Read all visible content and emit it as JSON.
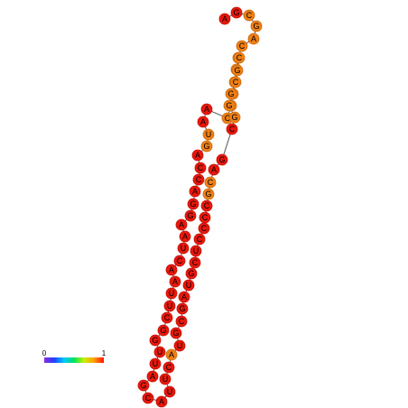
{
  "colors": {
    "high": "#e8180c",
    "mid": "#ee7f16",
    "stroke_high": "#c41008",
    "stroke_mid": "#c96a10",
    "backbone": "#555555"
  },
  "legend": {
    "min_label": "0",
    "max_label": "1",
    "gradient": [
      "#8a2be2",
      "#2040ff",
      "#00c8ff",
      "#00e060",
      "#c8f000",
      "#ffa000",
      "#ff1000"
    ]
  },
  "nucleotides": [
    {
      "base": "A",
      "level": "high"
    },
    {
      "base": "G",
      "level": "high"
    },
    {
      "base": "C",
      "level": "mid"
    },
    {
      "base": "G",
      "level": "mid"
    },
    {
      "base": "A",
      "level": "mid"
    },
    {
      "base": "C",
      "level": "mid"
    },
    {
      "base": "G",
      "level": "mid"
    },
    {
      "base": "C",
      "level": "mid"
    },
    {
      "base": "U",
      "level": "mid"
    },
    {
      "base": "G",
      "level": "mid"
    },
    {
      "base": "C",
      "level": "mid"
    },
    {
      "base": "C",
      "level": "mid"
    },
    {
      "base": "A",
      "level": "high"
    },
    {
      "base": "A",
      "level": "high"
    },
    {
      "base": "U",
      "level": "mid"
    },
    {
      "base": "G",
      "level": "mid"
    },
    {
      "base": "A",
      "level": "high"
    },
    {
      "base": "C",
      "level": "high"
    },
    {
      "base": "C",
      "level": "high"
    },
    {
      "base": "A",
      "level": "high"
    },
    {
      "base": "G",
      "level": "high"
    },
    {
      "base": "G",
      "level": "high"
    },
    {
      "base": "A",
      "level": "high"
    },
    {
      "base": "A",
      "level": "high"
    },
    {
      "base": "U",
      "level": "high"
    },
    {
      "base": "C",
      "level": "high"
    },
    {
      "base": "A",
      "level": "high"
    },
    {
      "base": "A",
      "level": "high"
    },
    {
      "base": "U",
      "level": "high"
    },
    {
      "base": "U",
      "level": "high"
    },
    {
      "base": "C",
      "level": "high"
    },
    {
      "base": "G",
      "level": "high"
    },
    {
      "base": "G",
      "level": "high"
    },
    {
      "base": "U",
      "level": "high"
    },
    {
      "base": "U",
      "level": "high"
    },
    {
      "base": "A",
      "level": "high"
    },
    {
      "base": "G",
      "level": "high"
    },
    {
      "base": "C",
      "level": "high"
    },
    {
      "base": "A",
      "level": "high"
    },
    {
      "base": "U",
      "level": "high"
    },
    {
      "base": "U",
      "level": "high"
    },
    {
      "base": "C",
      "level": "high"
    },
    {
      "base": "A",
      "level": "mid"
    },
    {
      "base": "U",
      "level": "high"
    },
    {
      "base": "G",
      "level": "high"
    },
    {
      "base": "C",
      "level": "high"
    },
    {
      "base": "G",
      "level": "high"
    },
    {
      "base": "A",
      "level": "high"
    },
    {
      "base": "U",
      "level": "high"
    },
    {
      "base": "G",
      "level": "high"
    },
    {
      "base": "C",
      "level": "high"
    },
    {
      "base": "U",
      "level": "high"
    },
    {
      "base": "C",
      "level": "high"
    },
    {
      "base": "C",
      "level": "high"
    },
    {
      "base": "C",
      "level": "high"
    },
    {
      "base": "C",
      "level": "high"
    },
    {
      "base": "G",
      "level": "mid"
    },
    {
      "base": "C",
      "level": "mid"
    },
    {
      "base": "A",
      "level": "high"
    },
    {
      "base": "G",
      "level": "high"
    },
    {
      "base": "C",
      "level": "high"
    },
    {
      "base": "G",
      "level": "mid"
    },
    {
      "base": "G",
      "level": "mid"
    },
    {
      "base": "G",
      "level": "mid"
    },
    {
      "base": "C",
      "level": "mid"
    },
    {
      "base": "G",
      "level": "mid"
    },
    {
      "base": "C",
      "level": "mid"
    }
  ]
}
